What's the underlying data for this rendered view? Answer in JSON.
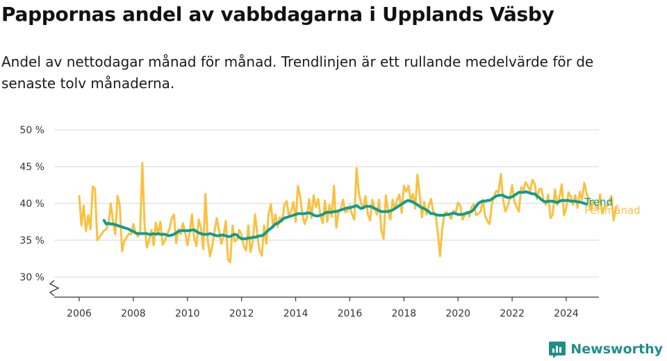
{
  "header": {
    "title": "Pappornas andel av vabbdagarna i Upplands Väsby",
    "subtitle": "Andel av nettodagar månad för månad. Trendlinjen är ett rullande medelvärde för de senaste tolv månaderna."
  },
  "brand": {
    "name": "Newsworthy",
    "icon": "newsworthy-logo-icon"
  },
  "colors": {
    "trend": "#0e9d8f",
    "monthly": "#fbc03f",
    "grid": "#dddddd",
    "axis": "#333333"
  },
  "chart_data": {
    "type": "line",
    "title": "Pappornas andel av vabbdagarna i Upplands Väsby",
    "subtitle": "Andel av nettodagar månad för månad. Trendlinjen är ett rullande medelvärde för de senaste tolv månaderna.",
    "xlabel": "",
    "ylabel": "",
    "xlim": [
      2005.2,
      2025.2
    ],
    "ylim": [
      27.5,
      50
    ],
    "axis_break": true,
    "grid": true,
    "x_ticks": [
      2006,
      2008,
      2010,
      2012,
      2014,
      2016,
      2018,
      2020,
      2022,
      2024
    ],
    "x_tick_labels": [
      "2006",
      "2008",
      "2010",
      "2012",
      "2014",
      "2016",
      "2018",
      "2020",
      "2022",
      "2024"
    ],
    "y_ticks": [
      30,
      35,
      40,
      45,
      50
    ],
    "y_tick_labels": [
      "30 %",
      "35 %",
      "40 %",
      "45 %",
      "50 %"
    ],
    "legend": "direct-labels-right",
    "series": [
      {
        "name": "Per månad",
        "color": "#fbc03f",
        "start": [
          2006,
          1
        ],
        "values": [
          41,
          37,
          39.7,
          36.2,
          38.4,
          36.5,
          42.3,
          42,
          35,
          35.4,
          35.9,
          36.3,
          36.5,
          37.2,
          40,
          37.5,
          35.8,
          41,
          39.7,
          33.5,
          34.9,
          35.4,
          35.9,
          35.8,
          37.2,
          36,
          35.5,
          36.2,
          45.5,
          37,
          34,
          35,
          36.4,
          34.3,
          37.4,
          35.8,
          37.5,
          34.4,
          34.9,
          35.8,
          36.5,
          38,
          38.5,
          34.6,
          36.5,
          35.8,
          37.3,
          36,
          34.3,
          36,
          38.5,
          35.3,
          34.2,
          37.8,
          36.7,
          33.8,
          41.3,
          35,
          32.8,
          34.2,
          36.2,
          38,
          36.3,
          34.5,
          35.6,
          37.6,
          32.4,
          32,
          37,
          34.8,
          35.1,
          36.4,
          35.7,
          34.2,
          33.6,
          37,
          33.4,
          34.9,
          38.5,
          35.7,
          33.6,
          32.9,
          37,
          34.5,
          38.6,
          39.9,
          36.7,
          38.5,
          36.8,
          38.1,
          37.5,
          39.8,
          40.3,
          38.4,
          38.9,
          40.2,
          37.5,
          42.4,
          40.9,
          38.5,
          37.2,
          38.1,
          40.6,
          38,
          41.1,
          39.5,
          40.6,
          38.3,
          37.3,
          40.4,
          37.5,
          39.8,
          38.2,
          42.4,
          36.7,
          38.8,
          39.2,
          40.5,
          38.8,
          39,
          39.7,
          38.5,
          37.8,
          44.8,
          41.5,
          40,
          39.3,
          41,
          38.5,
          37.7,
          40.5,
          39.4,
          38.5,
          40.5,
          36.3,
          35.2,
          41.1,
          39,
          37.8,
          40.5,
          39.2,
          40.5,
          41.2,
          38.7,
          42.4,
          41.6,
          42.4,
          40.4,
          41.3,
          39.3,
          43.9,
          41.2,
          38.1,
          40.2,
          38.5,
          39.6,
          40.6,
          38.9,
          38.5,
          36.2,
          32.8,
          36.5,
          38.7,
          38.8,
          38.4,
          37.9,
          39,
          38.8,
          40.1,
          39.7,
          37.8,
          38.4,
          38.9,
          38.2,
          39.5,
          39.9,
          38.4,
          38.6,
          38.9,
          40.5,
          38.3,
          37.6,
          37.2,
          39.8,
          41,
          41.7,
          41.5,
          44,
          40.5,
          38.9,
          39.6,
          40.7,
          42.5,
          40.3,
          39.5,
          38.9,
          42.2,
          41.8,
          42.9,
          42.3,
          41.7,
          43.2,
          42.7,
          40.6,
          41.9,
          42,
          40.3,
          39.8,
          41.2,
          38,
          38.5,
          41.9,
          39.8,
          40.9,
          42.6,
          38.4,
          39.4,
          41.5,
          40.9,
          39.8,
          41.1,
          39.4,
          41.6,
          40.5,
          42.8,
          41.4,
          40.5,
          39.1,
          40.4,
          39.7,
          39.2,
          41.2,
          38.6,
          39.6,
          39.6,
          40.1,
          41,
          37.7,
          39.5
        ]
      },
      {
        "name": "Trend",
        "color": "#0e9d8f",
        "start": [
          2006,
          12
        ],
        "values": [
          37.7,
          37.2,
          37.3,
          37.2,
          37.2,
          37.1,
          37,
          36.9,
          36.8,
          36.7,
          36.6,
          36.5,
          36.3,
          36.2,
          36,
          35.9,
          35.9,
          35.9,
          35.9,
          35.9,
          35.8,
          35.8,
          35.9,
          35.8,
          35.9,
          35.8,
          35.8,
          35.8,
          35.7,
          35.6,
          35.7,
          35.8,
          36,
          36.2,
          36.3,
          36.3,
          36.3,
          36.3,
          36.3,
          36.4,
          36.4,
          36.2,
          36,
          35.9,
          35.8,
          35.8,
          35.8,
          35.9,
          35.8,
          35.7,
          35.6,
          35.6,
          35.7,
          35.7,
          35.6,
          35.5,
          35.5,
          35.7,
          35.8,
          35.7,
          35.4,
          35.2,
          35.2,
          35.2,
          35.3,
          35.3,
          35.4,
          35.4,
          35.5,
          35.6,
          35.6,
          35.8,
          36.1,
          36.4,
          36.6,
          36.9,
          37.2,
          37.3,
          37.5,
          37.8,
          38,
          38.1,
          38.2,
          38.3,
          38.4,
          38.5,
          38.6,
          38.6,
          38.6,
          38.6,
          38.7,
          38.7,
          38.6,
          38.4,
          38.3,
          38.3,
          38.4,
          38.5,
          38.7,
          38.8,
          38.8,
          38.8,
          38.9,
          38.9,
          39,
          39.1,
          39.2,
          39.3,
          39.4,
          39.4,
          39.5,
          39.6,
          39.7,
          39.5,
          39.3,
          39.4,
          39.6,
          39.6,
          39.6,
          39.5,
          39.3,
          39.2,
          39,
          38.9,
          38.9,
          38.9,
          38.9,
          39,
          39.1,
          39.3,
          39.5,
          39.7,
          39.9,
          40.1,
          40.3,
          40.4,
          40.3,
          40.2,
          40,
          39.8,
          39.6,
          39.4,
          39.3,
          39.1,
          38.9,
          38.6,
          38.6,
          38.5,
          38.4,
          38.4,
          38.4,
          38.4,
          38.5,
          38.5,
          38.6,
          38.7,
          38.6,
          38.5,
          38.5,
          38.5,
          38.6,
          38.7,
          38.8,
          38.9,
          39.2,
          39.6,
          40,
          40.2,
          40.3,
          40.3,
          40.4,
          40.4,
          40.6,
          40.8,
          41,
          41.1,
          41.1,
          41.1,
          40.9,
          40.8,
          40.8,
          40.9,
          41.1,
          41.3,
          41.5,
          41.5,
          41.5,
          41.6,
          41.5,
          41.4,
          41.3,
          41.3,
          41,
          40.8,
          40.5,
          40.3,
          40.2,
          40.3,
          40.3,
          40.3,
          40.2,
          40.1,
          40.3,
          40.4,
          40.4,
          40.4,
          40.4,
          40.3,
          40.3,
          40.3,
          40.2,
          40.2,
          40.1,
          40,
          39.9
        ]
      }
    ]
  }
}
